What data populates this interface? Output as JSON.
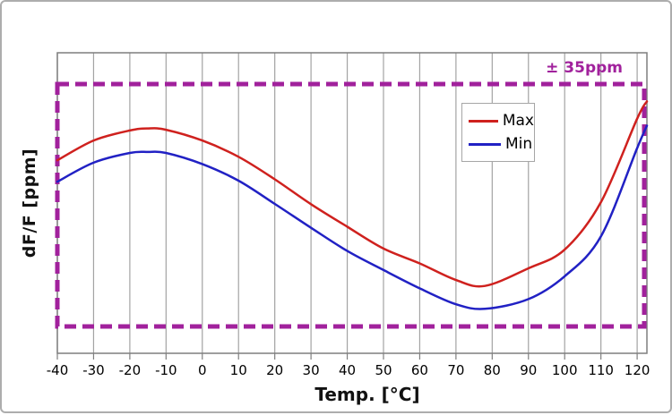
{
  "tolerance": {
    "label": "± 35ppm",
    "value_ppm": 35,
    "color": "#a1219c"
  },
  "legend": {
    "position": "upper-right-inside",
    "items": [
      {
        "label": "Max",
        "color": "#cf211e"
      },
      {
        "label": "Min",
        "color": "#2121c4"
      }
    ]
  },
  "colors": {
    "gridline": "#a3a3a3",
    "plot_border": "#7f7f7f",
    "tolerance_dash": "#a1219c",
    "max_line": "#cf211e",
    "min_line": "#2121c4",
    "text": "#111111",
    "outer_border": "#adadad"
  },
  "chart_data": {
    "type": "line",
    "title": "",
    "xlabel": "Temp. [°C]",
    "ylabel": "dF/F [ppm]",
    "xlim": [
      -40,
      122.7
    ],
    "ylim": [
      -42.8,
      44.0
    ],
    "x_ticks": [
      -40,
      -30,
      -20,
      -10,
      0,
      10,
      20,
      30,
      40,
      50,
      60,
      70,
      80,
      90,
      100,
      110,
      120
    ],
    "x_tick_labels": [
      "-40",
      "-30",
      "-20",
      "-10",
      "0",
      "10",
      "20",
      "30",
      "40",
      "50",
      "60",
      "70",
      "80",
      "90",
      "100",
      "110",
      "120"
    ],
    "grid": "vertical-only",
    "tolerance_band_ppm": 35,
    "legend_position": "upper-right-inside",
    "series": [
      {
        "name": "Max",
        "color": "#cf211e",
        "points": [
          [
            -40,
            13.0
          ],
          [
            -30,
            18.7
          ],
          [
            -20,
            21.6
          ],
          [
            -15,
            22.2
          ],
          [
            -10,
            21.8
          ],
          [
            0,
            18.7
          ],
          [
            10,
            14.0
          ],
          [
            20,
            7.5
          ],
          [
            30,
            0.3
          ],
          [
            40,
            -6.2
          ],
          [
            50,
            -12.5
          ],
          [
            60,
            -16.8
          ],
          [
            70,
            -21.6
          ],
          [
            78,
            -23.3
          ],
          [
            90,
            -18.2
          ],
          [
            100,
            -12.8
          ],
          [
            110,
            0.9
          ],
          [
            120,
            25.0
          ],
          [
            122.7,
            30.0
          ]
        ]
      },
      {
        "name": "Min",
        "color": "#2121c4",
        "points": [
          [
            -40,
            6.8
          ],
          [
            -30,
            12.3
          ],
          [
            -20,
            15.1
          ],
          [
            -15,
            15.4
          ],
          [
            -10,
            15.1
          ],
          [
            0,
            11.9
          ],
          [
            10,
            7.1
          ],
          [
            20,
            0.4
          ],
          [
            30,
            -6.5
          ],
          [
            40,
            -13.2
          ],
          [
            50,
            -18.7
          ],
          [
            60,
            -24.0
          ],
          [
            70,
            -28.6
          ],
          [
            78,
            -29.9
          ],
          [
            90,
            -27.1
          ],
          [
            100,
            -20.5
          ],
          [
            110,
            -9.0
          ],
          [
            120,
            16.5
          ],
          [
            122.7,
            23.0
          ]
        ]
      }
    ]
  }
}
